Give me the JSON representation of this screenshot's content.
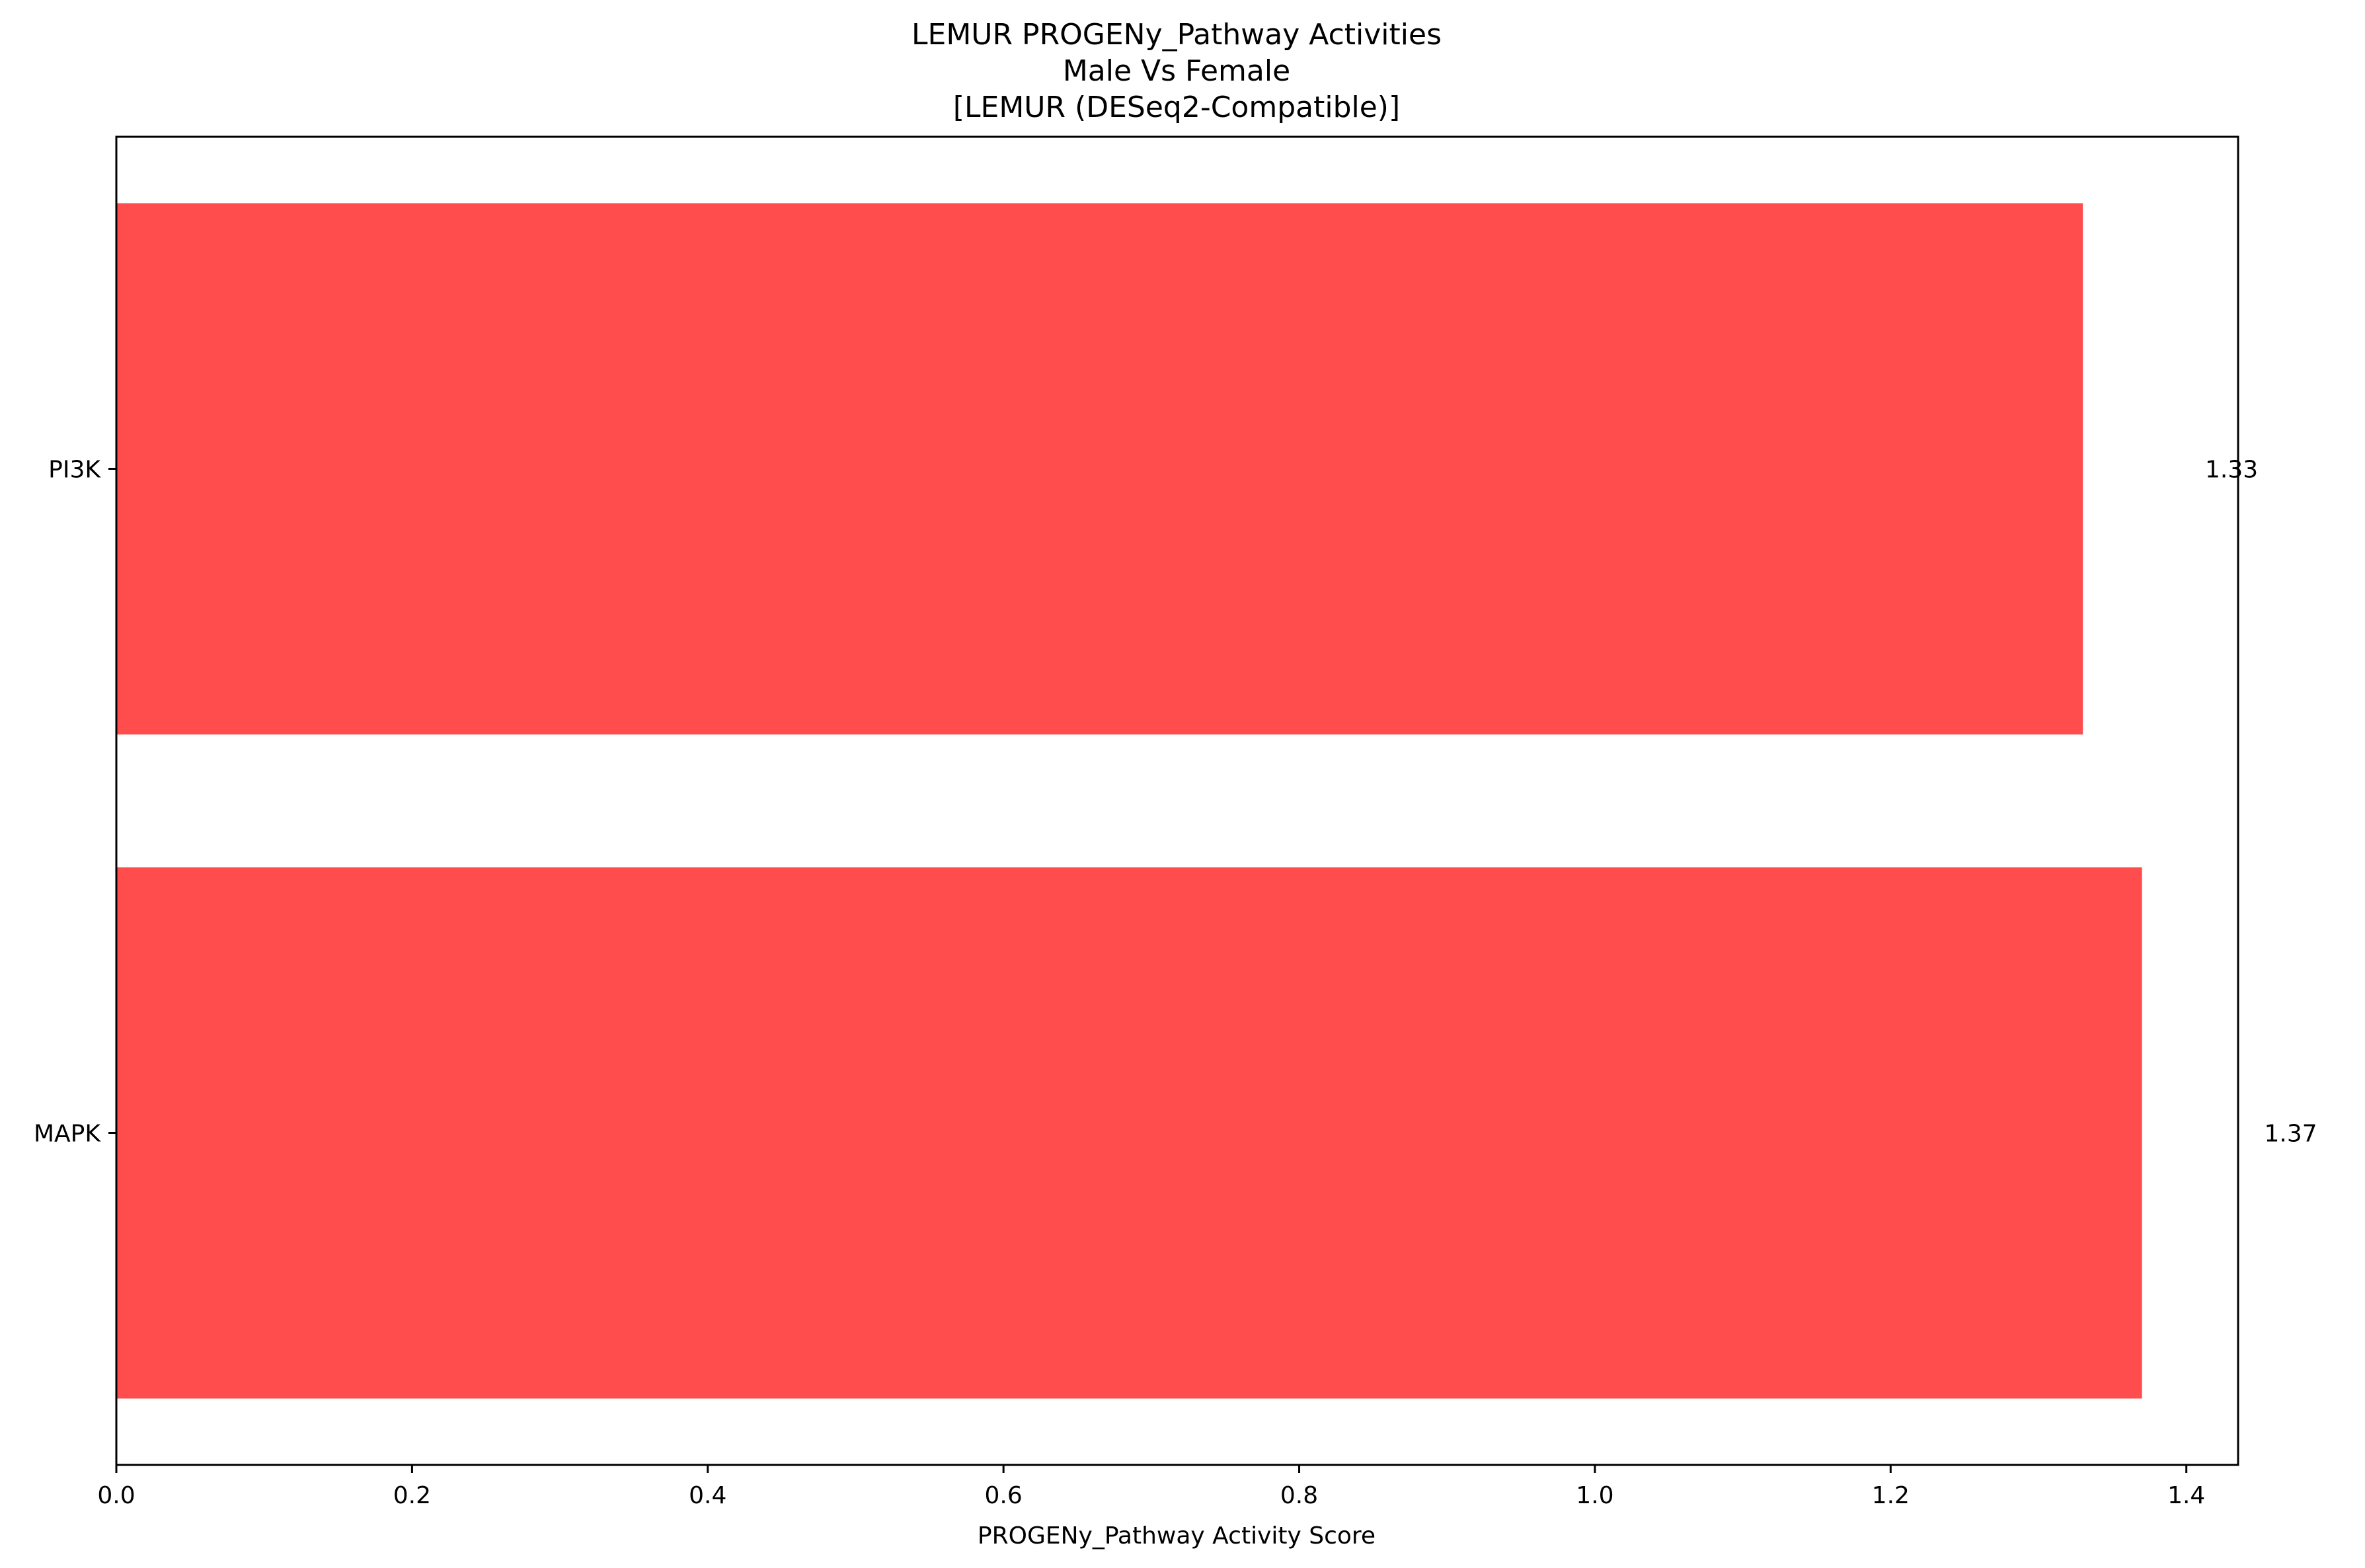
{
  "chart_data": {
    "type": "bar",
    "orientation": "horizontal",
    "title_lines": [
      "LEMUR PROGENy_Pathway Activities",
      "Male Vs Female",
      "[LEMUR (DESeq2-Compatible)]"
    ],
    "xlabel": "PROGENy_Pathway Activity Score",
    "ylabel": "",
    "categories": [
      "PI3K",
      "MAPK"
    ],
    "values": [
      1.33,
      1.37
    ],
    "value_labels": [
      "1.33",
      "1.37"
    ],
    "xlim": [
      0,
      1.435
    ],
    "x_ticks": [
      0.0,
      0.2,
      0.4,
      0.6,
      0.8,
      1.0,
      1.2,
      1.4
    ],
    "x_tick_labels": [
      "0.0",
      "0.2",
      "0.4",
      "0.6",
      "0.8",
      "1.0",
      "1.2",
      "1.4"
    ],
    "bar_color": "#ff4d4d",
    "grid": false,
    "legend": "none"
  }
}
